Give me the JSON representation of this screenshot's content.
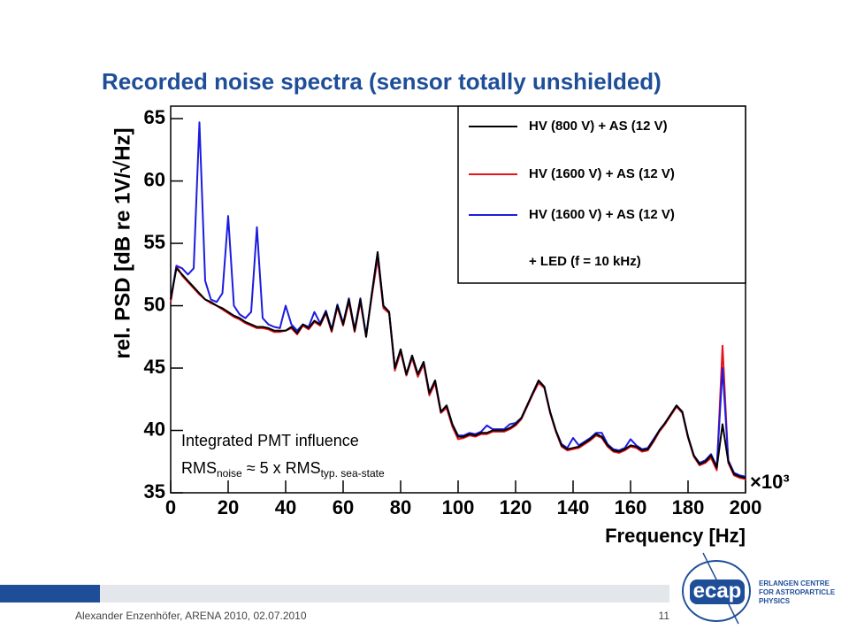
{
  "title": "Recorded noise spectra (sensor totally unshielded)",
  "footer": {
    "author": "Alexander Enzenhöfer, ARENA 2010, 02.07.2010",
    "page": "11"
  },
  "logo": {
    "mark": "ecap",
    "lines": [
      "ERLANGEN CENTRE",
      "FOR ASTROPARTICLE",
      "PHYSICS"
    ]
  },
  "chart_data": {
    "type": "line",
    "x_label": "Frequency [Hz]",
    "x_multiplier": "×10³",
    "y_label": "rel. PSD [dB re 1V/√Hz]",
    "annotation": {
      "line1": "Integrated PMT influence",
      "line2": [
        "RMS",
        "noise",
        " ≈ 5 x RMS",
        "typ. sea-state"
      ]
    },
    "legend_note": "+ LED (f = 10 kHz)",
    "xlim": [
      0,
      200
    ],
    "xticks": [
      0,
      20,
      40,
      60,
      80,
      100,
      120,
      140,
      160,
      180,
      200
    ],
    "ylim": [
      35,
      66
    ],
    "yticks": [
      35,
      40,
      45,
      50,
      55,
      60,
      65
    ],
    "x": [
      0,
      2,
      4,
      6,
      8,
      10,
      12,
      14,
      16,
      18,
      20,
      22,
      24,
      26,
      28,
      30,
      32,
      34,
      36,
      38,
      40,
      42,
      44,
      46,
      48,
      50,
      52,
      54,
      56,
      58,
      60,
      62,
      64,
      66,
      68,
      70,
      72,
      74,
      76,
      78,
      80,
      82,
      84,
      86,
      88,
      90,
      92,
      94,
      96,
      98,
      100,
      102,
      104,
      106,
      108,
      110,
      112,
      114,
      116,
      118,
      120,
      122,
      124,
      126,
      128,
      130,
      132,
      134,
      136,
      138,
      140,
      142,
      144,
      146,
      148,
      150,
      152,
      154,
      156,
      158,
      160,
      162,
      164,
      166,
      168,
      170,
      172,
      174,
      176,
      178,
      180,
      182,
      184,
      186,
      188,
      190,
      192,
      194,
      196,
      198,
      200
    ],
    "series": [
      {
        "name": "HV (1600 V) + AS (12 V)",
        "color": "#e8141c",
        "values": [
          50.3,
          53.2,
          52.4,
          51.9,
          51.4,
          50.9,
          50.5,
          50.2,
          50,
          49.7,
          49.4,
          49.1,
          48.9,
          48.6,
          48.4,
          48.2,
          48.2,
          48.1,
          47.9,
          47.9,
          48,
          48.2,
          47.7,
          48.4,
          48.1,
          48.7,
          48.4,
          49.4,
          47.9,
          49.9,
          48.4,
          50.3,
          47.9,
          50.3,
          47.6,
          50.8,
          53.8,
          49.8,
          49.4,
          44.8,
          46.3,
          44.4,
          45.8,
          44.3,
          45.3,
          42.8,
          43.8,
          41.4,
          41.8,
          40.3,
          39.3,
          39.4,
          39.6,
          39.5,
          39.7,
          39.7,
          39.9,
          39.9,
          39.9,
          40.1,
          40.4,
          40.9,
          41.9,
          42.9,
          43.8,
          43.4,
          41.4,
          39.9,
          38.7,
          38.4,
          38.5,
          38.6,
          38.9,
          39.2,
          39.6,
          39.4,
          38.7,
          38.3,
          38.2,
          38.4,
          38.7,
          38.6,
          38.3,
          38.4,
          39.1,
          39.9,
          40.5,
          41.2,
          41.9,
          41.4,
          39.4,
          37.9,
          37.2,
          37.4,
          37.8,
          36.8,
          46.8,
          37.4,
          36.4,
          36.2,
          36.1
        ]
      },
      {
        "name": "HV (1600 V) + AS (12 V)",
        "color": "#1c1ce0",
        "values": [
          50.5,
          53.2,
          53,
          52.5,
          53,
          64.7,
          52,
          50.5,
          50.3,
          51,
          57.2,
          50,
          49.3,
          49,
          49.5,
          56.3,
          49,
          48.5,
          48.3,
          48.2,
          50,
          48.5,
          48,
          48.5,
          48.3,
          49.5,
          48.6,
          49.6,
          48.1,
          50.1,
          48.6,
          50.6,
          48.1,
          50.6,
          47.6,
          51,
          54.2,
          50,
          49.5,
          45,
          46.5,
          44.5,
          46,
          44.5,
          45.5,
          43,
          44,
          41.5,
          42,
          40.5,
          39.6,
          39.6,
          39.8,
          39.7,
          39.9,
          40.4,
          40.1,
          40.1,
          40.1,
          40.5,
          40.6,
          41,
          42,
          43,
          44,
          43.5,
          41.5,
          40,
          38.9,
          38.6,
          39.4,
          38.8,
          39.1,
          39.4,
          39.8,
          39.8,
          38.9,
          38.5,
          38.4,
          38.6,
          39.3,
          38.8,
          38.5,
          38.6,
          39.3,
          40,
          40.6,
          41.3,
          42,
          41.5,
          39.5,
          38,
          37.4,
          37.6,
          38.1,
          37.1,
          45,
          37.6,
          36.6,
          36.4,
          36.3
        ]
      },
      {
        "name": "HV (800 V) + AS (12 V)",
        "color": "#000000",
        "values": [
          50.5,
          53,
          52.5,
          52,
          51.5,
          51,
          50.5,
          50.3,
          50,
          49.8,
          49.5,
          49.2,
          49,
          48.7,
          48.5,
          48.3,
          48.3,
          48.2,
          48,
          48,
          48,
          48.3,
          47.8,
          48.5,
          48.2,
          48.8,
          48.5,
          49.5,
          48,
          50,
          48.5,
          50.5,
          48,
          50.5,
          47.5,
          51,
          54.3,
          50,
          49.5,
          45,
          46.5,
          44.5,
          46,
          44.5,
          45.5,
          43,
          44,
          41.5,
          42,
          40.5,
          39.5,
          39.5,
          39.7,
          39.6,
          39.8,
          39.8,
          40,
          40,
          40,
          40.2,
          40.5,
          41,
          42,
          43,
          44,
          43.5,
          41.5,
          40,
          38.8,
          38.5,
          38.6,
          38.7,
          39,
          39.3,
          39.7,
          39.5,
          38.8,
          38.4,
          38.3,
          38.5,
          38.8,
          38.7,
          38.4,
          38.5,
          39.2,
          40,
          40.6,
          41.3,
          42,
          41.5,
          39.5,
          38,
          37.3,
          37.5,
          38,
          37,
          40.5,
          37.5,
          36.5,
          36.3,
          36.2
        ]
      }
    ]
  }
}
